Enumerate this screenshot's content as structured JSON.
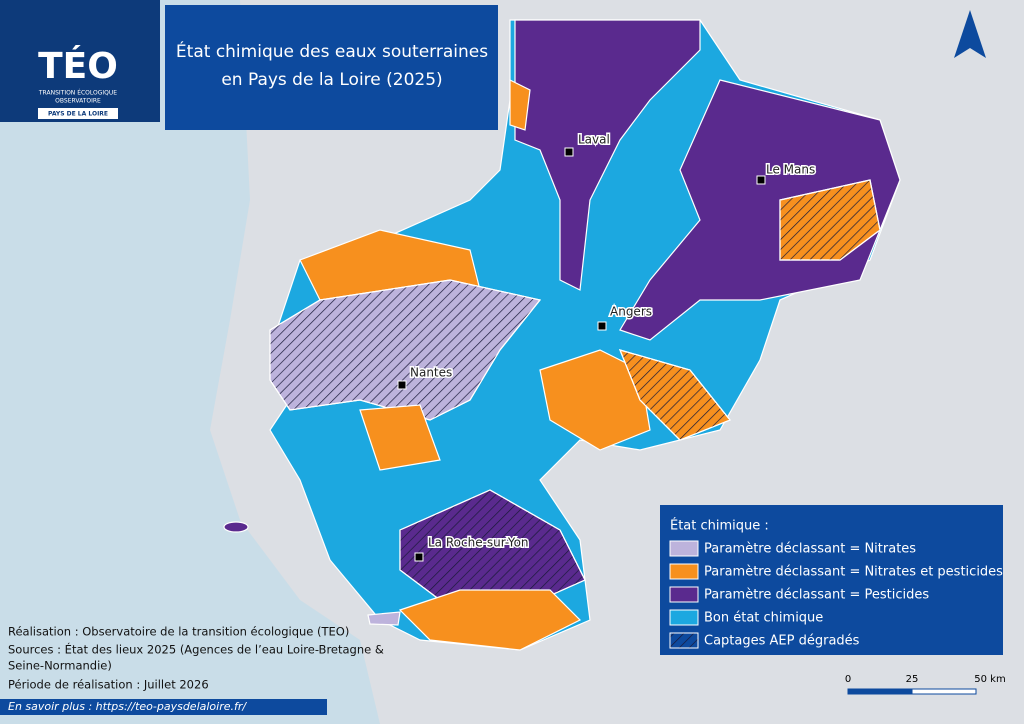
{
  "logo": {
    "name": "TÉO",
    "line1": "TRANSITION ÉCOLOGIQUE",
    "line2": "OBSERVATOIRE",
    "region": "PAYS DE LA LOIRE"
  },
  "title": {
    "line1": "État chimique des eaux souterraines",
    "line2": "en Pays de la Loire (2025)"
  },
  "cities": [
    "Laval",
    "Le Mans",
    "Angers",
    "Nantes",
    "La Roche-sur-Yon"
  ],
  "legend": {
    "title": "État chimique :",
    "items": [
      {
        "label": "Paramètre déclassant = Nitrates",
        "color": "#bdb3dc"
      },
      {
        "label": "Paramètre déclassant = Nitrates et pesticides",
        "color": "#f7901e"
      },
      {
        "label": "Paramètre déclassant = Pesticides",
        "color": "#5a2a8e"
      },
      {
        "label": "Bon état chimique",
        "color": "#1ca8e0"
      },
      {
        "label": "Captages AEP dégradés",
        "color": "hatch"
      }
    ]
  },
  "credits": [
    "Réalisation : Observatoire de la transition écologique (TEO)",
    "Sources : État des lieux 2025 (Agences de l’eau Loire-Bretagne &",
    "Seine-Normandie)",
    "Période de réalisation : Juillet 2026"
  ],
  "scale": [
    "0",
    "25",
    "50 km"
  ],
  "link": "En savoir plus : https://teo-paysdelaloire.fr/"
}
